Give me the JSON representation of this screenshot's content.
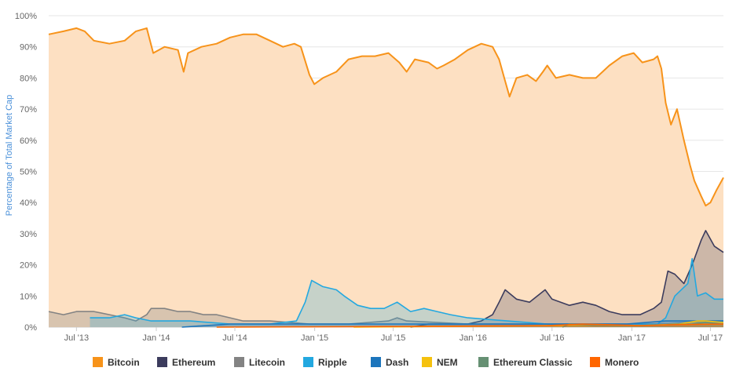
{
  "chart_data": {
    "type": "area",
    "ylabel": "Percentage of Total Market Cap",
    "ylim": [
      0,
      100
    ],
    "y_ticks": [
      "0%",
      "10%",
      "20%",
      "30%",
      "40%",
      "50%",
      "60%",
      "70%",
      "80%",
      "90%",
      "100%"
    ],
    "x_ticks": [
      "Jul '13",
      "Jan '14",
      "Jul '14",
      "Jan '15",
      "Jul '15",
      "Jan '16",
      "Jul '16",
      "Jan '17",
      "Jul '17"
    ],
    "xlim": [
      "2013-04-28",
      "2017-07-31"
    ],
    "grid": true,
    "legend_position": "bottom",
    "series": [
      {
        "name": "Bitcoin",
        "color": "#f7931a",
        "fill": "#fde0c2",
        "points": [
          [
            "2013-04-28",
            94
          ],
          [
            "2013-06-01",
            95
          ],
          [
            "2013-07-01",
            96
          ],
          [
            "2013-07-20",
            95
          ],
          [
            "2013-08-10",
            92
          ],
          [
            "2013-09-15",
            91
          ],
          [
            "2013-10-20",
            92
          ],
          [
            "2013-11-15",
            95
          ],
          [
            "2013-12-10",
            96
          ],
          [
            "2013-12-25",
            88
          ],
          [
            "2014-01-20",
            90
          ],
          [
            "2014-02-20",
            89
          ],
          [
            "2014-03-05",
            82
          ],
          [
            "2014-03-15",
            88
          ],
          [
            "2014-04-15",
            90
          ],
          [
            "2014-05-20",
            91
          ],
          [
            "2014-06-20",
            93
          ],
          [
            "2014-07-20",
            94
          ],
          [
            "2014-08-20",
            94
          ],
          [
            "2014-09-20",
            92
          ],
          [
            "2014-10-20",
            90
          ],
          [
            "2014-11-15",
            91
          ],
          [
            "2014-11-30",
            90
          ],
          [
            "2014-12-20",
            81
          ],
          [
            "2014-12-31",
            78
          ],
          [
            "2015-01-20",
            80
          ],
          [
            "2015-02-20",
            82
          ],
          [
            "2015-03-20",
            86
          ],
          [
            "2015-04-20",
            87
          ],
          [
            "2015-05-20",
            87
          ],
          [
            "2015-06-20",
            88
          ],
          [
            "2015-07-15",
            85
          ],
          [
            "2015-08-01",
            82
          ],
          [
            "2015-08-20",
            86
          ],
          [
            "2015-09-20",
            85
          ],
          [
            "2015-10-10",
            83
          ],
          [
            "2015-10-25",
            84
          ],
          [
            "2015-11-20",
            86
          ],
          [
            "2015-12-20",
            89
          ],
          [
            "2016-01-20",
            91
          ],
          [
            "2016-02-15",
            90
          ],
          [
            "2016-03-01",
            86
          ],
          [
            "2016-03-15",
            79
          ],
          [
            "2016-03-25",
            74
          ],
          [
            "2016-04-10",
            80
          ],
          [
            "2016-05-05",
            81
          ],
          [
            "2016-05-25",
            79
          ],
          [
            "2016-06-10",
            82
          ],
          [
            "2016-06-20",
            84
          ],
          [
            "2016-07-10",
            80
          ],
          [
            "2016-08-10",
            81
          ],
          [
            "2016-09-10",
            80
          ],
          [
            "2016-10-10",
            80
          ],
          [
            "2016-11-10",
            84
          ],
          [
            "2016-12-10",
            87
          ],
          [
            "2017-01-05",
            88
          ],
          [
            "2017-01-25",
            85
          ],
          [
            "2017-02-20",
            86
          ],
          [
            "2017-03-01",
            87
          ],
          [
            "2017-03-10",
            83
          ],
          [
            "2017-03-20",
            72
          ],
          [
            "2017-04-01",
            65
          ],
          [
            "2017-04-15",
            70
          ],
          [
            "2017-05-01",
            60
          ],
          [
            "2017-05-15",
            52
          ],
          [
            "2017-05-25",
            47
          ],
          [
            "2017-06-10",
            42
          ],
          [
            "2017-06-20",
            39
          ],
          [
            "2017-07-01",
            40
          ],
          [
            "2017-07-15",
            44
          ],
          [
            "2017-07-31",
            48
          ]
        ]
      },
      {
        "name": "Ethereum",
        "color": "#3c3c5d",
        "fill": "rgba(60,60,93,0.25)",
        "points": [
          [
            "2015-08-10",
            0
          ],
          [
            "2015-09-20",
            1
          ],
          [
            "2015-12-20",
            1
          ],
          [
            "2016-01-20",
            2
          ],
          [
            "2016-02-15",
            4
          ],
          [
            "2016-03-01",
            8
          ],
          [
            "2016-03-15",
            12
          ],
          [
            "2016-04-10",
            9
          ],
          [
            "2016-05-10",
            8
          ],
          [
            "2016-06-15",
            12
          ],
          [
            "2016-07-01",
            9
          ],
          [
            "2016-08-10",
            7
          ],
          [
            "2016-09-10",
            8
          ],
          [
            "2016-10-10",
            7
          ],
          [
            "2016-11-10",
            5
          ],
          [
            "2016-12-10",
            4
          ],
          [
            "2017-01-20",
            4
          ],
          [
            "2017-02-20",
            6
          ],
          [
            "2017-03-10",
            8
          ],
          [
            "2017-03-25",
            18
          ],
          [
            "2017-04-10",
            17
          ],
          [
            "2017-05-01",
            14
          ],
          [
            "2017-05-20",
            20
          ],
          [
            "2017-06-10",
            28
          ],
          [
            "2017-06-20",
            31
          ],
          [
            "2017-07-10",
            26
          ],
          [
            "2017-07-31",
            24
          ]
        ]
      },
      {
        "name": "Litecoin",
        "color": "#838383",
        "fill": "rgba(131,131,131,0.3)",
        "points": [
          [
            "2013-04-28",
            5
          ],
          [
            "2013-06-01",
            4
          ],
          [
            "2013-07-01",
            5
          ],
          [
            "2013-08-10",
            5
          ],
          [
            "2013-09-15",
            4
          ],
          [
            "2013-10-20",
            3
          ],
          [
            "2013-11-15",
            2
          ],
          [
            "2013-12-10",
            4
          ],
          [
            "2013-12-20",
            6
          ],
          [
            "2014-01-20",
            6
          ],
          [
            "2014-02-20",
            5
          ],
          [
            "2014-03-20",
            5
          ],
          [
            "2014-04-20",
            4
          ],
          [
            "2014-05-20",
            4
          ],
          [
            "2014-06-20",
            3
          ],
          [
            "2014-07-20",
            2
          ],
          [
            "2014-09-20",
            2
          ],
          [
            "2014-12-20",
            1
          ],
          [
            "2015-03-20",
            1
          ],
          [
            "2015-06-20",
            2
          ],
          [
            "2015-07-10",
            3
          ],
          [
            "2015-08-01",
            2
          ],
          [
            "2015-12-20",
            1
          ],
          [
            "2016-06-20",
            1
          ],
          [
            "2017-03-20",
            1
          ],
          [
            "2017-06-20",
            2
          ],
          [
            "2017-07-31",
            2
          ]
        ]
      },
      {
        "name": "Ripple",
        "color": "#23a8e0",
        "fill": "rgba(35,168,224,0.25)",
        "points": [
          [
            "2013-08-01",
            3
          ],
          [
            "2013-09-15",
            3
          ],
          [
            "2013-10-20",
            4
          ],
          [
            "2013-11-15",
            3
          ],
          [
            "2013-12-20",
            2
          ],
          [
            "2014-03-20",
            2
          ],
          [
            "2014-06-20",
            1
          ],
          [
            "2014-09-20",
            1
          ],
          [
            "2014-11-20",
            2
          ],
          [
            "2014-12-10",
            8
          ],
          [
            "2014-12-25",
            15
          ],
          [
            "2015-01-20",
            13
          ],
          [
            "2015-02-20",
            12
          ],
          [
            "2015-03-10",
            10
          ],
          [
            "2015-04-10",
            7
          ],
          [
            "2015-05-10",
            6
          ],
          [
            "2015-06-10",
            6
          ],
          [
            "2015-07-10",
            8
          ],
          [
            "2015-08-10",
            5
          ],
          [
            "2015-09-10",
            6
          ],
          [
            "2015-10-10",
            5
          ],
          [
            "2015-11-10",
            4
          ],
          [
            "2015-12-20",
            3
          ],
          [
            "2016-03-20",
            2
          ],
          [
            "2016-06-20",
            1
          ],
          [
            "2016-12-20",
            1
          ],
          [
            "2017-03-01",
            1
          ],
          [
            "2017-03-20",
            3
          ],
          [
            "2017-04-10",
            10
          ],
          [
            "2017-05-10",
            14
          ],
          [
            "2017-05-20",
            22
          ],
          [
            "2017-06-01",
            10
          ],
          [
            "2017-06-20",
            11
          ],
          [
            "2017-07-10",
            9
          ],
          [
            "2017-07-31",
            9
          ]
        ]
      },
      {
        "name": "Dash",
        "color": "#1c75bc",
        "fill": "rgba(28,117,188,0.25)",
        "points": [
          [
            "2014-03-01",
            0
          ],
          [
            "2014-06-20",
            1
          ],
          [
            "2015-06-20",
            1
          ],
          [
            "2016-06-20",
            1
          ],
          [
            "2016-12-20",
            1
          ],
          [
            "2017-03-20",
            2
          ],
          [
            "2017-05-20",
            2
          ],
          [
            "2017-07-31",
            2
          ]
        ]
      },
      {
        "name": "NEM",
        "color": "#f5c10e",
        "fill": "rgba(245,193,14,0.3)",
        "points": [
          [
            "2015-04-01",
            0
          ],
          [
            "2016-06-20",
            0.5
          ],
          [
            "2017-01-20",
            0.5
          ],
          [
            "2017-04-20",
            1
          ],
          [
            "2017-06-01",
            2
          ],
          [
            "2017-06-20",
            2
          ],
          [
            "2017-07-31",
            1.5
          ]
        ]
      },
      {
        "name": "Ethereum Classic",
        "color": "#669073",
        "fill": "rgba(102,144,115,0.3)",
        "points": [
          [
            "2016-07-25",
            0
          ],
          [
            "2016-08-10",
            1
          ],
          [
            "2016-10-10",
            0.5
          ],
          [
            "2017-01-20",
            0.5
          ],
          [
            "2017-05-20",
            1
          ],
          [
            "2017-06-20",
            1.5
          ],
          [
            "2017-07-31",
            1
          ]
        ]
      },
      {
        "name": "Monero",
        "color": "#ff6600",
        "fill": "rgba(255,102,0,0.3)",
        "points": [
          [
            "2014-05-20",
            0
          ],
          [
            "2015-06-20",
            0.2
          ],
          [
            "2016-06-20",
            0.5
          ],
          [
            "2016-09-10",
            1
          ],
          [
            "2017-01-20",
            0.5
          ],
          [
            "2017-04-20",
            0.8
          ],
          [
            "2017-07-31",
            1
          ]
        ]
      }
    ]
  }
}
